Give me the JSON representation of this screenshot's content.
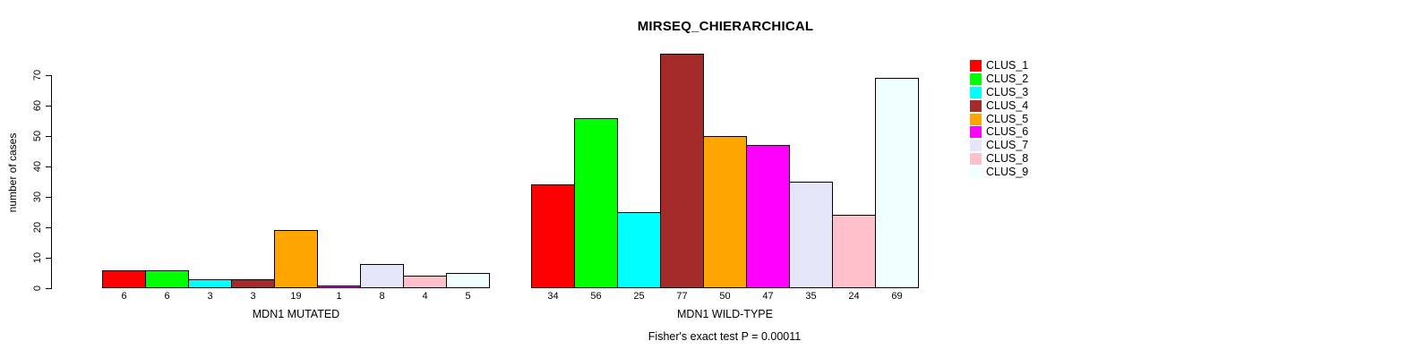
{
  "title": "MIRSEQ_CHIERARCHICAL",
  "caption": "Fisher's exact test P = 0.00011",
  "chart_data": {
    "type": "bar",
    "title": "MIRSEQ_CHIERARCHICAL",
    "ylabel": "number of cases",
    "xlabel": "",
    "ylim": [
      0,
      77
    ],
    "yticks": [
      0,
      10,
      20,
      30,
      40,
      50,
      60,
      70
    ],
    "grid": false,
    "legend_position": "top-right",
    "legend_entries": [
      "CLUS_1",
      "CLUS_2",
      "CLUS_3",
      "CLUS_4",
      "CLUS_5",
      "CLUS_6",
      "CLUS_7",
      "CLUS_8",
      "CLUS_9"
    ],
    "colors": [
      "#ff0000",
      "#00ff00",
      "#00ffff",
      "#a52a2a",
      "#ffa500",
      "#ff00ff",
      "#e6e6fa",
      "#ffc0cb",
      "#f0ffff"
    ],
    "bar_border_color": "#000000",
    "groups": [
      {
        "label": "MDN1 MUTATED",
        "values": [
          6,
          6,
          3,
          3,
          19,
          1,
          8,
          4,
          5
        ]
      },
      {
        "label": "MDN1 WILD-TYPE",
        "values": [
          34,
          56,
          25,
          77,
          50,
          47,
          35,
          24,
          69
        ]
      }
    ],
    "annotation": "Fisher's exact test P = 0.00011"
  }
}
